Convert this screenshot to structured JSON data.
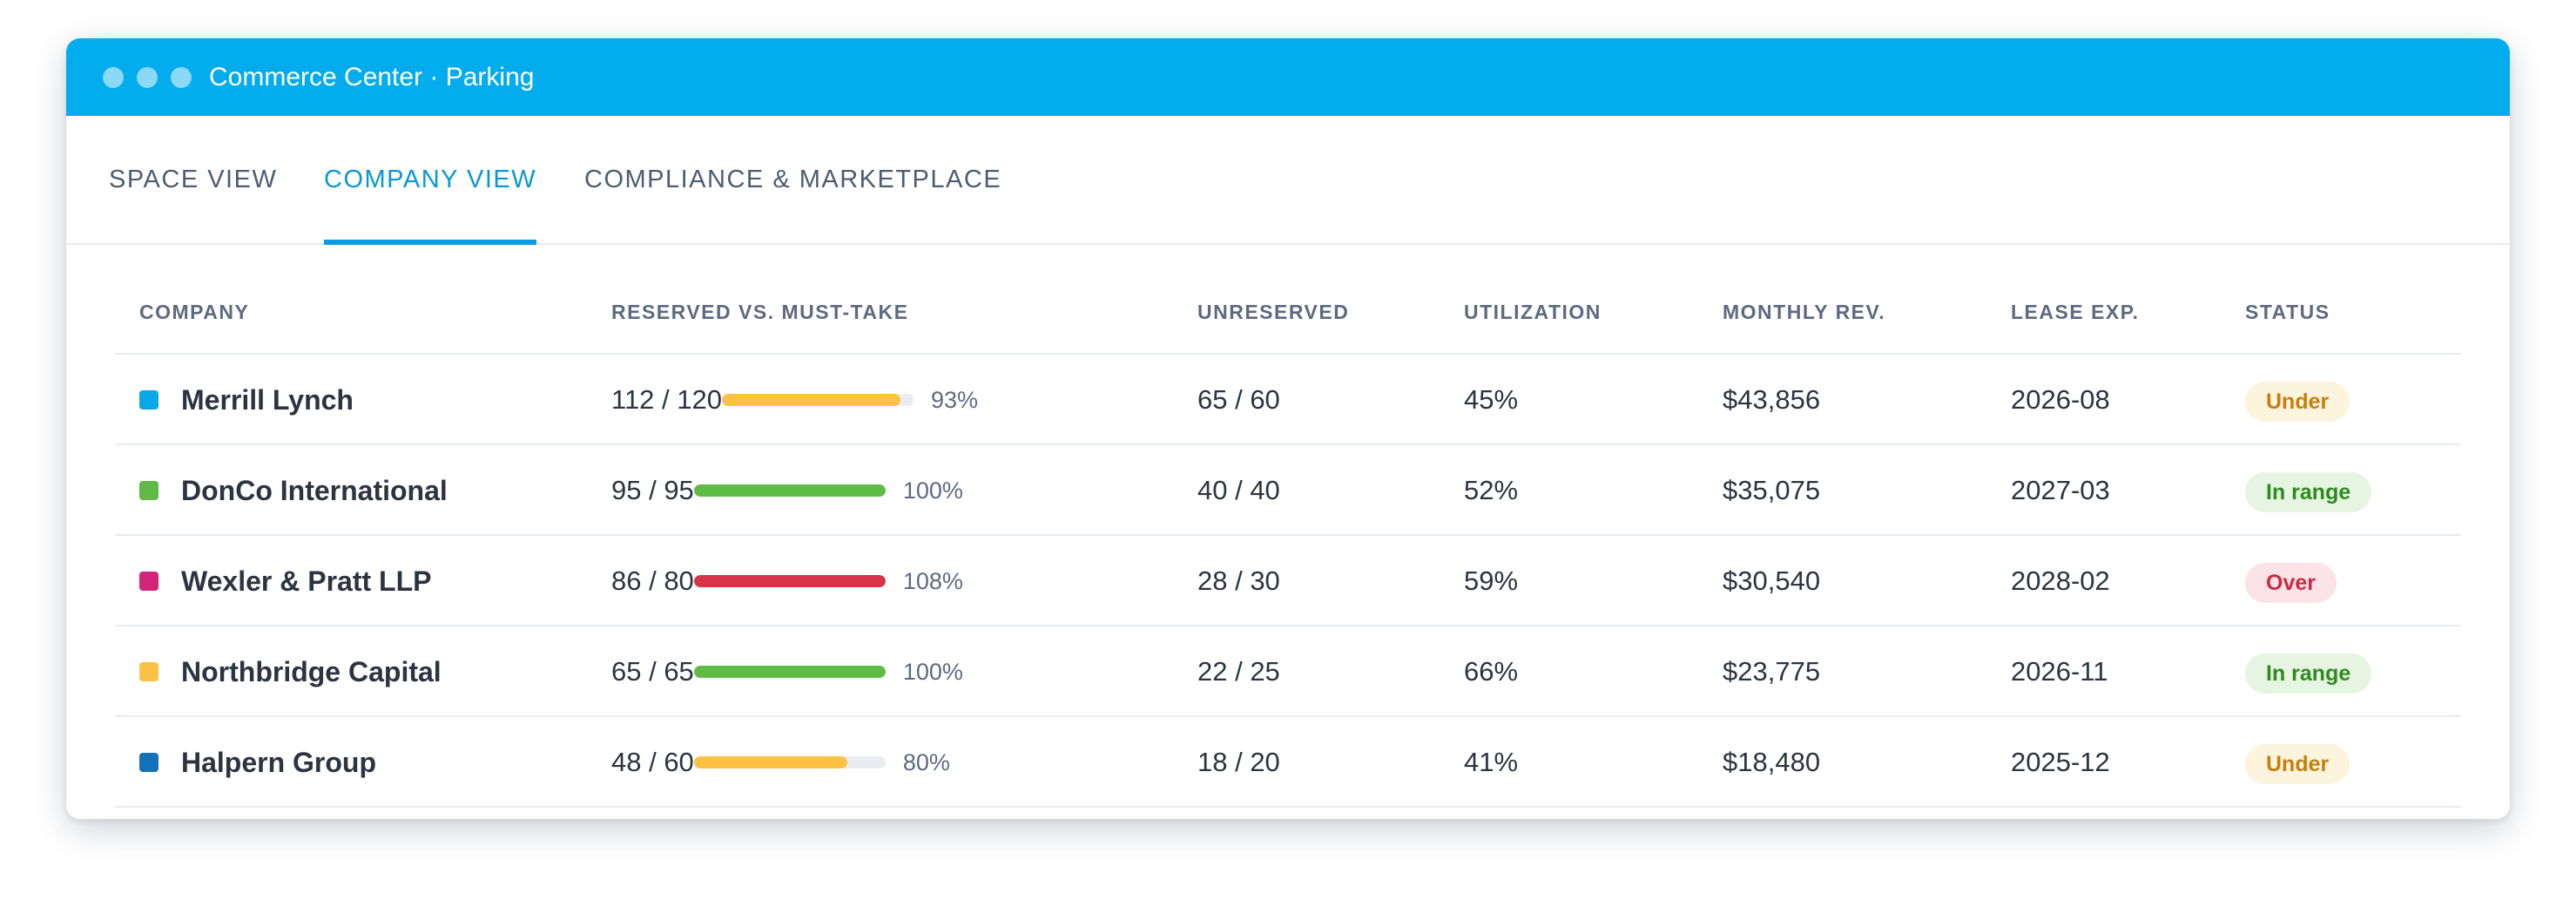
{
  "window": {
    "title": "Commerce Center · Parking"
  },
  "tabs": [
    {
      "label": "SPACE VIEW",
      "active": false
    },
    {
      "label": "COMPANY VIEW",
      "active": true
    },
    {
      "label": "COMPLIANCE & MARKETPLACE",
      "active": false
    }
  ],
  "table": {
    "headers": {
      "company": "COMPANY",
      "reserved": "RESERVED VS. MUST-TAKE",
      "unreserved": "UNRESERVED",
      "utilization": "UTILIZATION",
      "revenue": "MONTHLY REV.",
      "lease": "LEASE EXP.",
      "status": "STATUS"
    },
    "rows": [
      {
        "company": "Merrill Lynch",
        "color": "#0aa8e6",
        "reserved": "112 / 120",
        "fill": 0.93,
        "fill_color": "#fdc244",
        "pct": "93%",
        "unreserved": "65 / 60",
        "utilization": "45%",
        "revenue": "$43,856",
        "lease": "2026-08",
        "status": "Under",
        "status_kind": "under"
      },
      {
        "company": "DonCo International",
        "color": "#5fbb46",
        "reserved": "95 / 95",
        "fill": 1.0,
        "fill_color": "#5fbb46",
        "pct": "100%",
        "unreserved": "40 / 40",
        "utilization": "52%",
        "revenue": "$35,075",
        "lease": "2027-03",
        "status": "In range",
        "status_kind": "inrange"
      },
      {
        "company": "Wexler & Pratt LLP",
        "color": "#d2257a",
        "reserved": "86 / 80",
        "fill": 1.0,
        "fill_color": "#d73447",
        "pct": "108%",
        "unreserved": "28 / 30",
        "utilization": "59%",
        "revenue": "$30,540",
        "lease": "2028-02",
        "status": "Over",
        "status_kind": "over"
      },
      {
        "company": "Northbridge Capital",
        "color": "#fdc244",
        "reserved": "65 / 65",
        "fill": 1.0,
        "fill_color": "#5fbb46",
        "pct": "100%",
        "unreserved": "22 / 25",
        "utilization": "66%",
        "revenue": "$23,775",
        "lease": "2026-11",
        "status": "In range",
        "status_kind": "inrange"
      },
      {
        "company": "Halpern Group",
        "color": "#1472ba",
        "reserved": "48 / 60",
        "fill": 0.8,
        "fill_color": "#fdc244",
        "pct": "80%",
        "unreserved": "18 / 20",
        "utilization": "41%",
        "revenue": "$18,480",
        "lease": "2025-12",
        "status": "Under",
        "status_kind": "under"
      }
    ]
  }
}
